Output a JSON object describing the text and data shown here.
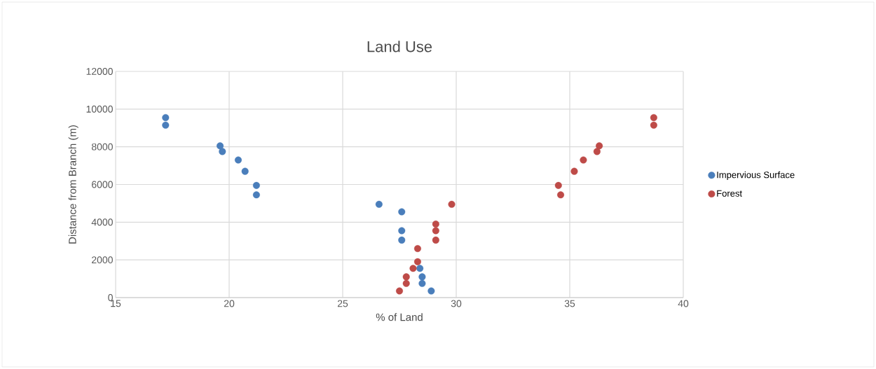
{
  "chart_data": {
    "type": "scatter",
    "title": "Land Use",
    "xlabel": "% of Land",
    "ylabel": "Distance from Branch (m)",
    "xlim": [
      15,
      40
    ],
    "xticks": [
      15,
      20,
      25,
      30,
      35,
      40
    ],
    "ylim": [
      0,
      12000
    ],
    "yticks": [
      0,
      2000,
      4000,
      6000,
      8000,
      10000,
      12000
    ],
    "grid": true,
    "legend": "right",
    "marker": "circle",
    "series": [
      {
        "name": "Impervious Surface",
        "color": "#4a7ebb",
        "x": [
          17.2,
          17.2,
          19.6,
          19.7,
          20.4,
          20.7,
          21.2,
          21.2,
          26.6,
          27.6,
          27.6,
          27.6,
          28.4,
          28.5,
          28.5,
          28.9
        ],
        "values": [
          9550,
          9150,
          8050,
          7750,
          7300,
          6700,
          5950,
          5450,
          4950,
          4550,
          3550,
          3050,
          1550,
          1100,
          750,
          350
        ]
      },
      {
        "name": "Forest",
        "color": "#be4b48",
        "x": [
          38.7,
          38.7,
          36.3,
          36.2,
          35.6,
          35.2,
          34.5,
          34.6,
          29.8,
          29.1,
          29.1,
          29.1,
          28.3,
          28.3,
          28.1,
          27.8,
          27.8,
          27.5
        ],
        "values": [
          9550,
          9150,
          8050,
          7750,
          7300,
          6700,
          5950,
          5450,
          4950,
          3900,
          3550,
          3050,
          2600,
          1900,
          1550,
          1100,
          750,
          350
        ]
      }
    ]
  }
}
